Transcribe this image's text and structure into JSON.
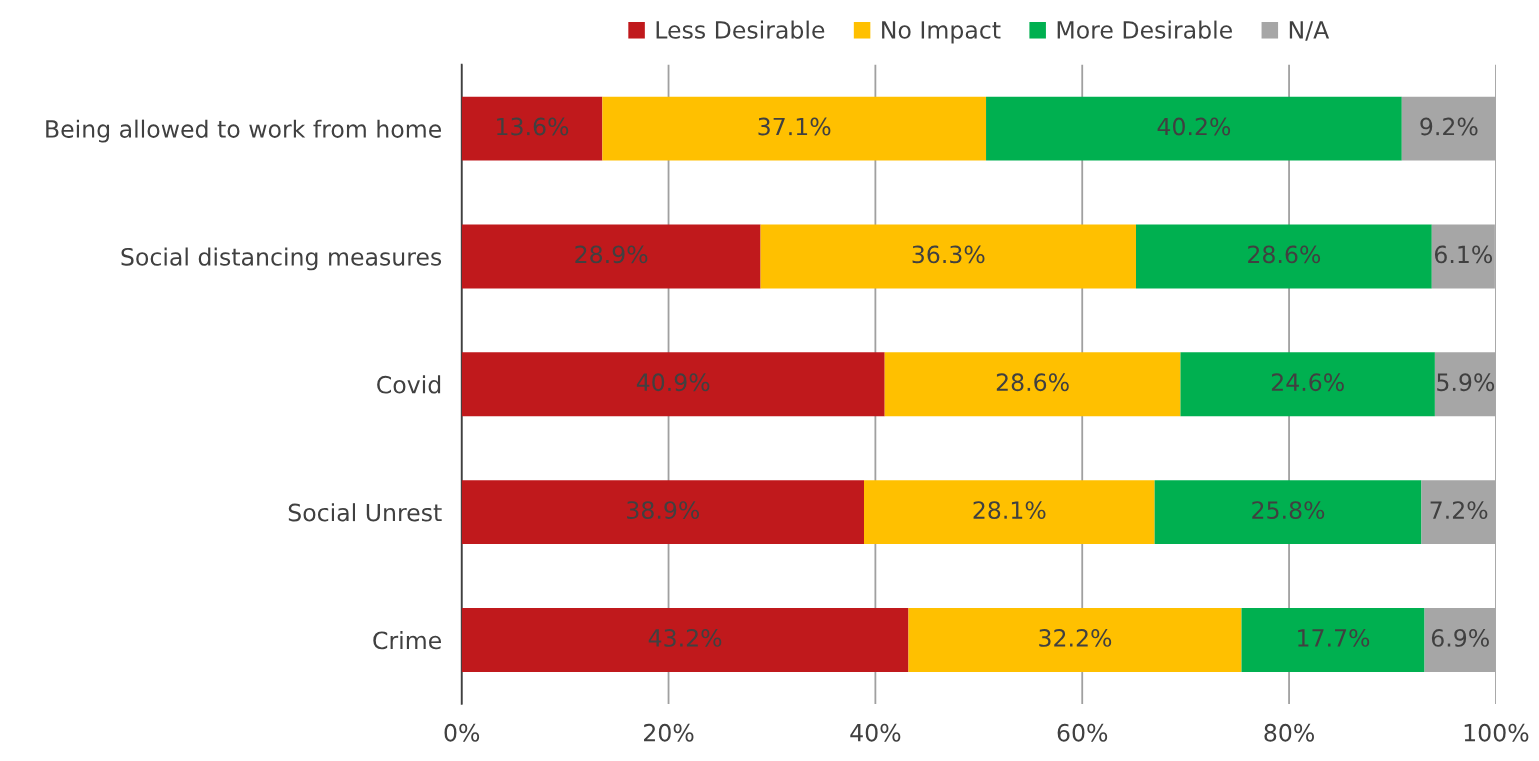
{
  "chart_data": {
    "type": "bar",
    "orientation": "horizontal",
    "stacked": true,
    "categories": [
      "Being allowed to work from home",
      "Social distancing measures",
      "Covid",
      "Social Unrest",
      "Crime"
    ],
    "series": [
      {
        "name": "Less Desirable",
        "color": "#c0191c",
        "values": [
          13.6,
          28.9,
          40.9,
          38.9,
          43.2
        ],
        "value_labels": [
          "13.6%",
          "28.9%",
          "40.9%",
          "38.9%",
          "43.2%"
        ]
      },
      {
        "name": "No Impact",
        "color": "#ffc000",
        "values": [
          37.1,
          36.3,
          28.6,
          28.1,
          32.2
        ],
        "value_labels": [
          "37.1%",
          "36.3%",
          "28.6%",
          "28.1%",
          "32.2%"
        ]
      },
      {
        "name": "More Desirable",
        "color": "#00b050",
        "values": [
          40.2,
          28.6,
          24.6,
          25.8,
          17.7
        ],
        "value_labels": [
          "40.2%",
          "28.6%",
          "24.6%",
          "25.8%",
          "17.7%"
        ]
      },
      {
        "name": "N/A",
        "color": "#a6a6a6",
        "values": [
          9.2,
          6.1,
          5.9,
          7.2,
          6.9
        ],
        "value_labels": [
          "9.2%",
          "6.1%",
          "5.9%",
          "7.2%",
          "6.9%"
        ]
      }
    ],
    "xlim": [
      0,
      100
    ],
    "xticks": [
      {
        "value": 0,
        "label": "0%"
      },
      {
        "value": 20,
        "label": "20%"
      },
      {
        "value": 40,
        "label": "40%"
      },
      {
        "value": 60,
        "label": "60%"
      },
      {
        "value": 80,
        "label": "80%"
      },
      {
        "value": 100,
        "label": "100%"
      }
    ],
    "grid": "x",
    "legend": "top"
  }
}
